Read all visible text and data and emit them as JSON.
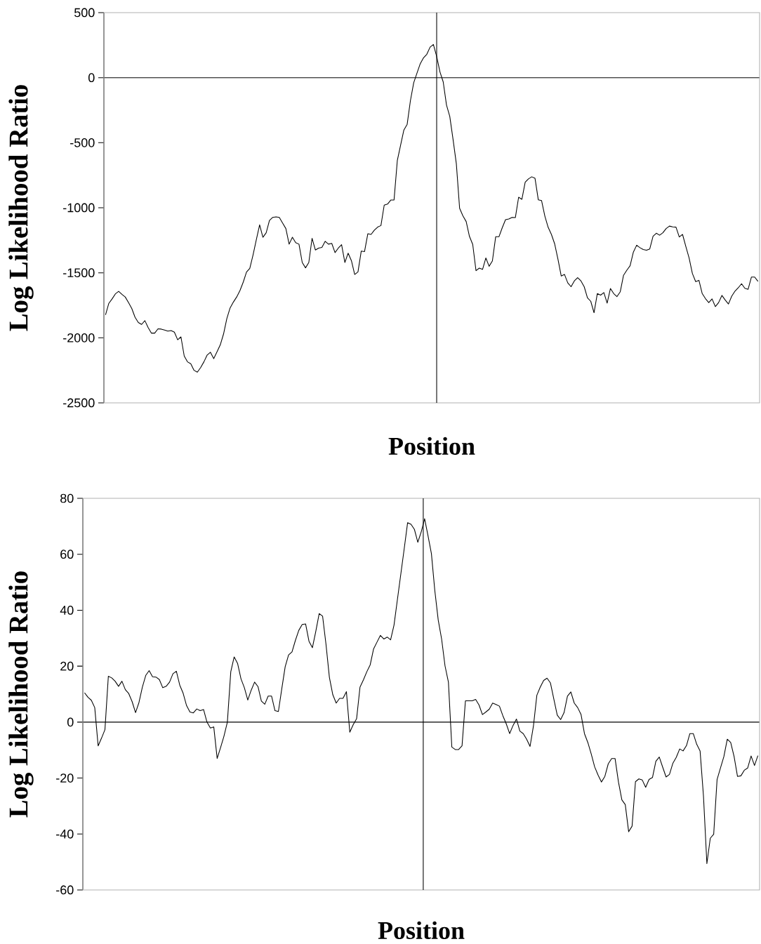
{
  "chart_data": [
    {
      "type": "line",
      "ylabel": "Log Likelihood Ratio",
      "xlabel": "Position",
      "tick_labels": "y",
      "categories": [
        null,
        null,
        null,
        null,
        null,
        null,
        null,
        null,
        null,
        null,
        null,
        null,
        null,
        null,
        null,
        null,
        null,
        null,
        null,
        null,
        null,
        null,
        null,
        null,
        null,
        null,
        null,
        null,
        null,
        null,
        null,
        null,
        null,
        null,
        null,
        null,
        null,
        null,
        null,
        null,
        null,
        null,
        null,
        null,
        null,
        null,
        null,
        null,
        null,
        null,
        null,
        null,
        null,
        null,
        null,
        null,
        null,
        null,
        null,
        null,
        null,
        null,
        null,
        null,
        null,
        null,
        null,
        null,
        null,
        null,
        null,
        null,
        null,
        null,
        null,
        null,
        null,
        null,
        null,
        null,
        null,
        null,
        null,
        null,
        null,
        null,
        null,
        null,
        null,
        null,
        null,
        null,
        null,
        null,
        null,
        null,
        null,
        null,
        null,
        null,
        null,
        null,
        null,
        null,
        null,
        null,
        null,
        null,
        null,
        null,
        null,
        null,
        null,
        null,
        null,
        null,
        null,
        null,
        null,
        null,
        null,
        null,
        null,
        null,
        null,
        null,
        null,
        null,
        null,
        null,
        null,
        null,
        null,
        null,
        null,
        null,
        null,
        null,
        null,
        null,
        null,
        null,
        null,
        null,
        null,
        null,
        null,
        null,
        null,
        null,
        null,
        null,
        null,
        null,
        null,
        null,
        null,
        null,
        null,
        null,
        null,
        null,
        null,
        null,
        null,
        null,
        null,
        null,
        null,
        null,
        null,
        null,
        null,
        null,
        null,
        null,
        null,
        null,
        null,
        null,
        null,
        null,
        null,
        null,
        null,
        null,
        null,
        null,
        null,
        null,
        null,
        null,
        null,
        null,
        null,
        null,
        null,
        null,
        null,
        null
      ],
      "series": [
        {
          "color": "#000000",
          "values": [
            -1823,
            -1735,
            -1701,
            -1662,
            -1643,
            -1666,
            -1686,
            -1729,
            -1774,
            -1842,
            -1882,
            -1897,
            -1868,
            -1921,
            -1964,
            -1964,
            -1931,
            -1933,
            -1940,
            -1948,
            -1944,
            -1956,
            -2015,
            -1993,
            -2140,
            -2185,
            -2199,
            -2250,
            -2264,
            -2229,
            -2185,
            -2132,
            -2111,
            -2160,
            -2107,
            -2054,
            -1970,
            -1852,
            -1770,
            -1725,
            -1686,
            -1637,
            -1572,
            -1494,
            -1466,
            -1362,
            -1245,
            -1131,
            -1227,
            -1192,
            -1098,
            -1074,
            -1070,
            -1074,
            -1117,
            -1160,
            -1280,
            -1227,
            -1268,
            -1280,
            -1421,
            -1462,
            -1421,
            -1235,
            -1325,
            -1310,
            -1305,
            -1258,
            -1280,
            -1274,
            -1345,
            -1310,
            -1284,
            -1421,
            -1349,
            -1407,
            -1513,
            -1493,
            -1333,
            -1337,
            -1200,
            -1205,
            -1172,
            -1149,
            -1137,
            -980,
            -972,
            -941,
            -941,
            -637,
            -519,
            -402,
            -359,
            -176,
            -39,
            35,
            108,
            153,
            180,
            235,
            255,
            163,
            45,
            -33,
            -210,
            -298,
            -475,
            -661,
            -1004,
            -1062,
            -1106,
            -1220,
            -1282,
            -1484,
            -1464,
            -1474,
            -1386,
            -1450,
            -1409,
            -1223,
            -1223,
            -1154,
            -1092,
            -1086,
            -1074,
            -1076,
            -919,
            -935,
            -804,
            -778,
            -762,
            -774,
            -939,
            -945,
            -1064,
            -1150,
            -1205,
            -1278,
            -1396,
            -1525,
            -1513,
            -1578,
            -1607,
            -1562,
            -1537,
            -1562,
            -1607,
            -1693,
            -1719,
            -1807,
            -1660,
            -1672,
            -1652,
            -1733,
            -1621,
            -1660,
            -1683,
            -1646,
            -1519,
            -1480,
            -1446,
            -1341,
            -1288,
            -1307,
            -1321,
            -1327,
            -1317,
            -1219,
            -1196,
            -1211,
            -1192,
            -1160,
            -1141,
            -1147,
            -1149,
            -1225,
            -1205,
            -1297,
            -1386,
            -1505,
            -1568,
            -1558,
            -1660,
            -1699,
            -1729,
            -1701,
            -1760,
            -1729,
            -1674,
            -1709,
            -1740,
            -1680,
            -1641,
            -1615,
            -1584,
            -1619,
            -1627,
            -1533,
            -1533,
            -1566
          ]
        }
      ],
      "ylim": [
        -2500,
        500
      ],
      "yticks": [
        -2500,
        -2000,
        -1500,
        -1000,
        -500,
        0,
        500
      ]
    },
    {
      "type": "line",
      "ylabel": "Log Likelihood Ratio",
      "xlabel": "Position",
      "tick_labels": "y",
      "categories": [
        null,
        null,
        null,
        null,
        null,
        null,
        null,
        null,
        null,
        null,
        null,
        null,
        null,
        null,
        null,
        null,
        null,
        null,
        null,
        null,
        null,
        null,
        null,
        null,
        null,
        null,
        null,
        null,
        null,
        null,
        null,
        null,
        null,
        null,
        null,
        null,
        null,
        null,
        null,
        null,
        null,
        null,
        null,
        null,
        null,
        null,
        null,
        null,
        null,
        null,
        null,
        null,
        null,
        null,
        null,
        null,
        null,
        null,
        null,
        null,
        null,
        null,
        null,
        null,
        null,
        null,
        null,
        null,
        null,
        null,
        null,
        null,
        null,
        null,
        null,
        null,
        null,
        null,
        null,
        null,
        null,
        null,
        null,
        null,
        null,
        null,
        null,
        null,
        null,
        null,
        null,
        null,
        null,
        null,
        null,
        null,
        null,
        null,
        null,
        null,
        null,
        null,
        null,
        null,
        null,
        null,
        null,
        null,
        null,
        null,
        null,
        null,
        null,
        null,
        null,
        null,
        null,
        null,
        null,
        null,
        null,
        null,
        null,
        null,
        null,
        null,
        null,
        null,
        null,
        null,
        null,
        null,
        null,
        null,
        null,
        null,
        null,
        null,
        null,
        null,
        null,
        null,
        null,
        null,
        null,
        null,
        null,
        null,
        null,
        null,
        null,
        null,
        null,
        null,
        null,
        null,
        null,
        null,
        null,
        null,
        null,
        null,
        null,
        null,
        null,
        null,
        null,
        null,
        null,
        null,
        null,
        null,
        null,
        null,
        null,
        null,
        null,
        null,
        null,
        null,
        null,
        null,
        null,
        null,
        null,
        null,
        null,
        null,
        null,
        null,
        null,
        null,
        null,
        null,
        null,
        null,
        null,
        null,
        null
      ],
      "series": [
        {
          "color": "#000000",
          "values": [
            10.5,
            8.9,
            7.8,
            5.2,
            -8.5,
            -5.7,
            -2.7,
            16.4,
            15.8,
            14.6,
            12.8,
            14.6,
            11.6,
            10.2,
            7.3,
            3.4,
            7.0,
            12.5,
            16.7,
            18.4,
            16.2,
            16.1,
            15.2,
            12.3,
            12.8,
            14.3,
            17.3,
            18.2,
            13.2,
            10.3,
            5.9,
            3.6,
            3.3,
            4.7,
            4.1,
            4.5,
            0,
            -2.1,
            -1.7,
            -13.0,
            -9.1,
            -5.0,
            0,
            18.0,
            23.3,
            21.0,
            15.5,
            12.3,
            7.9,
            11.4,
            14.3,
            12.7,
            7.5,
            6.4,
            9.3,
            9.3,
            4.1,
            3.8,
            11.9,
            19.8,
            24.0,
            25.1,
            29.2,
            32.8,
            34.9,
            35.1,
            28.9,
            26.6,
            32.4,
            38.8,
            37.9,
            27.8,
            16.0,
            9.8,
            6.8,
            8.5,
            8.5,
            10.9,
            -3.6,
            -0.9,
            1.2,
            12.5,
            15.1,
            18.0,
            20.5,
            26.2,
            28.6,
            31.0,
            29.7,
            30.4,
            29.4,
            34.7,
            43.8,
            52.9,
            62.0,
            71.3,
            70.7,
            68.9,
            64.3,
            68.0,
            72.7,
            66.6,
            60.2,
            47.0,
            36.5,
            29.7,
            20.1,
            14.3,
            -8.9,
            -9.8,
            -9.8,
            -8.5,
            7.6,
            7.6,
            7.6,
            8.1,
            6.1,
            2.7,
            3.6,
            4.6,
            6.8,
            6.3,
            5.7,
            2.3,
            -0.6,
            -4.1,
            -1.2,
            1.1,
            -3.2,
            -4.1,
            -6.1,
            -8.7,
            -1.4,
            9.6,
            12.5,
            14.9,
            15.7,
            14.0,
            8.2,
            2.5,
            0.9,
            3.4,
            9.3,
            10.8,
            6.8,
            5.2,
            2.7,
            -4.1,
            -7.3,
            -11.4,
            -16.0,
            -18.9,
            -21.4,
            -19.4,
            -14.9,
            -13.0,
            -13.0,
            -21.4,
            -27.8,
            -29.5,
            -39.2,
            -37.2,
            -21.3,
            -20.3,
            -20.7,
            -23.3,
            -20.5,
            -19.8,
            -14.0,
            -12.5,
            -16.1,
            -19.6,
            -18.7,
            -14.7,
            -12.6,
            -9.6,
            -10.3,
            -8.4,
            -4.1,
            -4.1,
            -7.9,
            -10.3,
            -26.5,
            -50.6,
            -41.5,
            -40.1,
            -20.5,
            -16.4,
            -12.3,
            -6.1,
            -7.3,
            -12.3,
            -19.4,
            -19.2,
            -17.2,
            -16.4,
            -12.1,
            -15.5,
            -12.0
          ]
        }
      ],
      "ylim": [
        -60,
        80
      ],
      "yticks": [
        -60,
        -40,
        -20,
        0,
        20,
        40,
        60,
        80
      ]
    }
  ]
}
